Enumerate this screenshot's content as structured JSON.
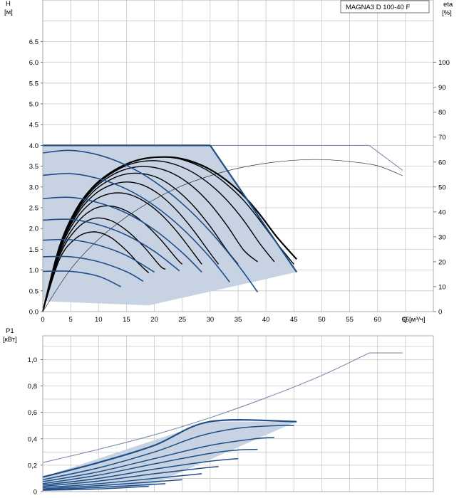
{
  "chart_data": [
    {
      "type": "line",
      "title": "MAGNA3 D 100-40 F",
      "ylabel": "H",
      "ylabel_unit": "[м]",
      "y2label": "eta",
      "y2label_unit": "[%]",
      "xlabel": "Q [м³/ч]",
      "xlim": [
        0,
        70
      ],
      "ylim": [
        0,
        7.5
      ],
      "y2lim": [
        0,
        125
      ],
      "x_ticks": [
        "0",
        "5",
        "10",
        "15",
        "20",
        "25",
        "30",
        "35",
        "40",
        "45",
        "50",
        "55",
        "60",
        "65"
      ],
      "y_ticks": [
        "0.0",
        "0.5",
        "1.0",
        "1.5",
        "2.0",
        "2.5",
        "3.0",
        "3.5",
        "4.0",
        "4.5",
        "5.0",
        "5.5",
        "6.0",
        "6.5"
      ],
      "y2_ticks": [
        "0",
        "10",
        "20",
        "30",
        "40",
        "50",
        "60",
        "70",
        "80",
        "90",
        "100"
      ],
      "grid": true,
      "colors": {
        "pump_curve": "#1f4e86",
        "area": "#c7d3e3",
        "efficiency": "#000000",
        "reference": "#7d8fad",
        "grid": "#c8c8c8"
      },
      "operating_area": [
        [
          0,
          4.0
        ],
        [
          30,
          4.0
        ],
        [
          45.5,
          0.95
        ],
        [
          19,
          0.15
        ],
        [
          0,
          0.25
        ]
      ],
      "head_curves": [
        {
          "x": [
            0,
            30
          ],
          "y": [
            4.0,
            4.0
          ]
        },
        {
          "x": [
            0,
            5,
            10,
            15,
            20,
            25,
            30,
            35,
            38.5
          ],
          "y": [
            3.82,
            3.88,
            3.77,
            3.52,
            3.13,
            2.6,
            1.93,
            1.12,
            0.47
          ]
        },
        {
          "x": [
            0,
            5,
            10,
            15,
            20,
            25,
            30,
            33.5
          ],
          "y": [
            3.28,
            3.32,
            3.2,
            2.95,
            2.55,
            2.0,
            1.3,
            0.71
          ]
        },
        {
          "x": [
            0,
            5,
            10,
            15,
            20,
            25,
            28.5
          ],
          "y": [
            2.72,
            2.75,
            2.62,
            2.37,
            1.97,
            1.42,
            0.95
          ]
        },
        {
          "x": [
            0,
            5,
            10,
            15,
            20,
            24.5
          ],
          "y": [
            2.2,
            2.22,
            2.09,
            1.84,
            1.45,
            0.98
          ]
        },
        {
          "x": [
            0,
            5,
            10,
            15,
            20
          ],
          "y": [
            1.72,
            1.73,
            1.6,
            1.35,
            0.95
          ]
        },
        {
          "x": [
            0,
            5,
            10,
            15,
            18
          ],
          "y": [
            1.32,
            1.32,
            1.2,
            0.96,
            0.73
          ]
        },
        {
          "x": [
            0,
            5,
            10,
            14
          ],
          "y": [
            0.97,
            0.97,
            0.85,
            0.6
          ]
        }
      ],
      "max_curve": {
        "x": [
          30,
          45.5
        ],
        "y": [
          4.0,
          0.95
        ]
      },
      "eta_curves": [
        {
          "x": [
            0,
            3,
            6,
            9,
            12,
            15,
            18,
            21,
            24,
            27,
            30,
            33,
            36,
            39,
            42,
            45.5
          ],
          "y": [
            0,
            26,
            41,
            50,
            55.5,
            59.2,
            61.3,
            62.0,
            61.7,
            60.0,
            57.0,
            52.5,
            46.5,
            38.7,
            29.8,
            21
          ]
        },
        {
          "x": [
            0,
            3,
            6,
            9,
            12,
            15,
            18,
            21,
            24,
            27,
            30,
            33,
            36,
            39,
            42,
            45
          ],
          "y": [
            0,
            26,
            41,
            50,
            55.5,
            59.2,
            61.3,
            62.0,
            61.5,
            59.4,
            56.0,
            51.0,
            44.6,
            36.3,
            27.3,
            19
          ]
        },
        {
          "x": [
            0,
            3,
            6,
            9,
            12,
            15,
            18,
            21,
            24,
            27,
            30,
            33,
            36,
            39,
            41.5
          ],
          "y": [
            0,
            26,
            40.5,
            49.6,
            55,
            58.6,
            60.3,
            60.4,
            58.8,
            55.7,
            51,
            44.7,
            36.6,
            27.0,
            20
          ]
        },
        {
          "x": [
            0,
            3,
            6,
            9,
            12,
            15,
            18,
            21,
            24,
            27,
            30,
            33,
            36,
            38.5
          ],
          "y": [
            0,
            25.7,
            40,
            49,
            54.2,
            57.2,
            58.2,
            57.3,
            54.6,
            49.9,
            43.2,
            34.6,
            24.7,
            20
          ]
        },
        {
          "x": [
            0,
            3,
            6,
            9,
            12,
            15,
            18,
            21,
            24,
            27,
            30,
            33,
            35
          ],
          "y": [
            0,
            25.3,
            39.3,
            48,
            52.8,
            55.2,
            55.3,
            53.3,
            48.8,
            42.4,
            34.2,
            24.6,
            19
          ]
        },
        {
          "x": [
            0,
            3,
            6,
            9,
            12,
            15,
            18,
            21,
            24,
            27,
            30,
            31.5
          ],
          "y": [
            0,
            24.8,
            38.5,
            46.5,
            50.6,
            52,
            50.7,
            46.8,
            40.6,
            32.6,
            23.4,
            19
          ]
        },
        {
          "x": [
            0,
            3,
            6,
            9,
            12,
            15,
            18,
            21,
            24,
            27,
            28.5
          ],
          "y": [
            0,
            24.2,
            37.2,
            44.3,
            47.3,
            47.3,
            44.5,
            39.4,
            32.2,
            23.5,
            19
          ]
        },
        {
          "x": [
            0,
            3,
            6,
            9,
            12,
            15,
            18,
            21,
            24,
            25
          ],
          "y": [
            0,
            23.2,
            35.2,
            41,
            42.4,
            40.4,
            35.8,
            29.2,
            21.2,
            19
          ]
        },
        {
          "x": [
            0,
            3,
            6,
            9,
            12,
            15,
            18,
            21,
            22
          ],
          "y": [
            0,
            22.3,
            33,
            37.3,
            36.7,
            32.6,
            26.3,
            18.4,
            17
          ]
        },
        {
          "x": [
            0,
            3,
            6,
            9,
            12,
            15,
            17,
            19
          ],
          "y": [
            0,
            21,
            29.5,
            32,
            30,
            24.5,
            19.7,
            15.5
          ]
        }
      ],
      "reference_head": {
        "x": [
          0,
          58.5,
          64.5
        ],
        "y": [
          4.0,
          4.0,
          3.4
        ]
      },
      "reference_eta": {
        "x": [
          0,
          5,
          10,
          15,
          20,
          25,
          30,
          35,
          40,
          45,
          50,
          55,
          60,
          64.5
        ],
        "y": [
          0,
          17,
          29,
          38,
          45,
          50.5,
          54.5,
          57.5,
          59.5,
          60.7,
          61,
          60.2,
          58.5,
          54.5
        ]
      }
    },
    {
      "type": "line",
      "ylabel": "P1",
      "ylabel_unit": "[кВт]",
      "xlim": [
        0,
        70
      ],
      "ylim": [
        0,
        1.18
      ],
      "y_ticks": [
        "0",
        "0,2",
        "0,4",
        "0,6",
        "0,8",
        "1,0"
      ],
      "grid": true,
      "power_area": [
        [
          0,
          0.11
        ],
        [
          30,
          0.53
        ],
        [
          45.5,
          0.53
        ],
        [
          19,
          0.04
        ],
        [
          0,
          0.01
        ]
      ],
      "power_curves": [
        {
          "x": [
            0,
            10,
            20,
            30,
            45.5
          ],
          "y": [
            0.11,
            0.22,
            0.35,
            0.53,
            0.53
          ]
        },
        {
          "x": [
            0,
            10,
            20,
            28,
            35,
            42,
            45
          ],
          "y": [
            0.09,
            0.18,
            0.3,
            0.42,
            0.48,
            0.5,
            0.5
          ]
        },
        {
          "x": [
            0,
            10,
            20,
            30,
            38,
            41.5
          ],
          "y": [
            0.075,
            0.15,
            0.25,
            0.35,
            0.4,
            0.41
          ]
        },
        {
          "x": [
            0,
            10,
            20,
            30,
            35,
            38.5
          ],
          "y": [
            0.06,
            0.125,
            0.21,
            0.29,
            0.315,
            0.32
          ]
        },
        {
          "x": [
            0,
            10,
            20,
            30,
            35
          ],
          "y": [
            0.05,
            0.1,
            0.17,
            0.23,
            0.25
          ]
        },
        {
          "x": [
            0,
            10,
            20,
            28,
            31.5
          ],
          "y": [
            0.04,
            0.08,
            0.135,
            0.175,
            0.19
          ]
        },
        {
          "x": [
            0,
            10,
            20,
            28.5
          ],
          "y": [
            0.03,
            0.06,
            0.1,
            0.135
          ]
        },
        {
          "x": [
            0,
            10,
            20,
            25
          ],
          "y": [
            0.02,
            0.045,
            0.075,
            0.09
          ]
        },
        {
          "x": [
            0,
            10,
            20,
            22
          ],
          "y": [
            0.015,
            0.032,
            0.055,
            0.06
          ]
        },
        {
          "x": [
            0,
            10,
            19
          ],
          "y": [
            0.01,
            0.02,
            0.04
          ]
        }
      ],
      "reference_power": {
        "x": [
          0,
          10,
          20,
          30,
          40,
          50,
          58.5,
          64.5
        ],
        "y": [
          0.22,
          0.32,
          0.43,
          0.56,
          0.71,
          0.88,
          1.05,
          1.05
        ]
      }
    }
  ]
}
